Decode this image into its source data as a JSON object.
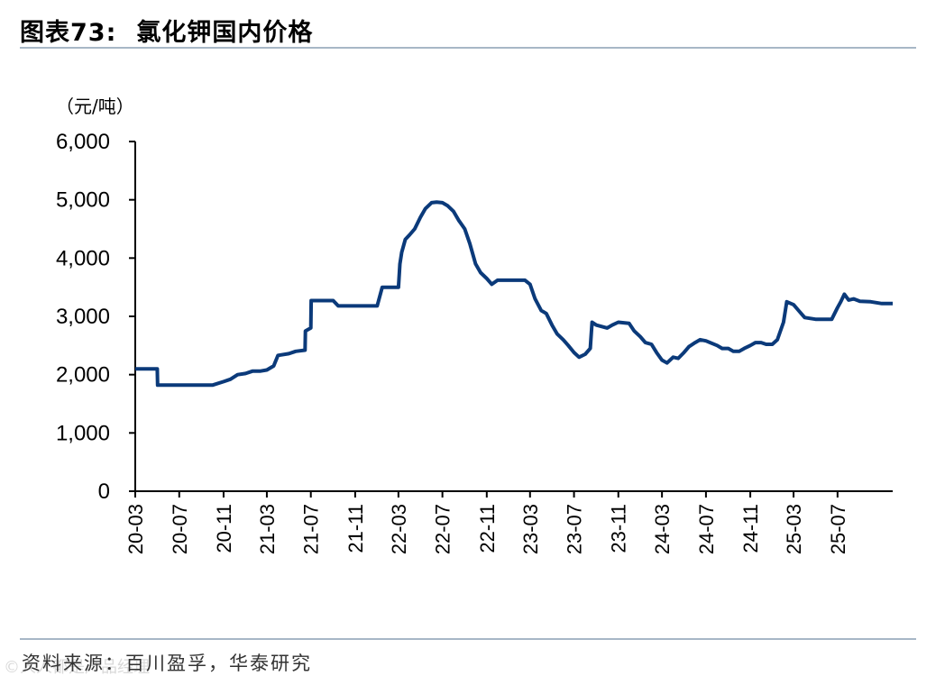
{
  "figure": {
    "label": "图表73:",
    "title": "氯化钾国内价格",
    "source": "资料来源：百川盈孚，华泰研究",
    "watermark": "©人人都是产品经理"
  },
  "chart_data": {
    "type": "line",
    "ylabel": "（元/吨）",
    "xlabel": "",
    "ylim": [
      0,
      6000
    ],
    "yticks": [
      "0",
      "1,000",
      "2,000",
      "3,000",
      "4,000",
      "5,000",
      "6,000"
    ],
    "xticks": [
      "20-03",
      "20-07",
      "20-11",
      "21-03",
      "21-07",
      "21-11",
      "22-03",
      "22-07",
      "22-11",
      "23-03",
      "23-07",
      "23-11",
      "24-03",
      "24-07",
      "24-11",
      "25-03",
      "25-07"
    ],
    "xrange": [
      "2020-03",
      "2025-12"
    ],
    "grid": false,
    "color": "#0b3a7a",
    "series": [
      {
        "name": "",
        "x": [
          "2020-03-01",
          "2020-05-01",
          "2020-05-02",
          "2020-06-01",
          "2020-07-01",
          "2020-08-01",
          "2020-09-01",
          "2020-10-01",
          "2020-11-01",
          "2020-11-20",
          "2020-12-10",
          "2021-01-01",
          "2021-01-20",
          "2021-02-10",
          "2021-03-01",
          "2021-03-20",
          "2021-04-01",
          "2021-05-01",
          "2021-05-20",
          "2021-06-15",
          "2021-06-16",
          "2021-07-01",
          "2021-07-02",
          "2021-08-01",
          "2021-09-01",
          "2021-09-15",
          "2021-10-01",
          "2021-11-01",
          "2021-12-01",
          "2022-01-01",
          "2022-01-15",
          "2022-02-01",
          "2022-03-01",
          "2022-03-05",
          "2022-03-10",
          "2022-03-20",
          "2022-04-01",
          "2022-04-15",
          "2022-05-01",
          "2022-05-15",
          "2022-06-01",
          "2022-06-15",
          "2022-07-01",
          "2022-07-15",
          "2022-08-01",
          "2022-08-15",
          "2022-09-01",
          "2022-09-15",
          "2022-10-01",
          "2022-10-15",
          "2022-11-01",
          "2022-11-15",
          "2022-12-01",
          "2023-01-01",
          "2023-02-01",
          "2023-02-15",
          "2023-03-01",
          "2023-03-15",
          "2023-04-01",
          "2023-04-15",
          "2023-05-01",
          "2023-05-15",
          "2023-06-01",
          "2023-06-15",
          "2023-07-01",
          "2023-07-15",
          "2023-08-01",
          "2023-08-15",
          "2023-08-20",
          "2023-09-01",
          "2023-10-01",
          "2023-10-15",
          "2023-11-01",
          "2023-12-01",
          "2023-12-15",
          "2024-01-01",
          "2024-01-15",
          "2024-02-01",
          "2024-02-15",
          "2024-03-01",
          "2024-03-15",
          "2024-04-01",
          "2024-04-15",
          "2024-05-01",
          "2024-05-15",
          "2024-06-01",
          "2024-06-15",
          "2024-07-01",
          "2024-08-01",
          "2024-08-15",
          "2024-09-01",
          "2024-09-15",
          "2024-10-01",
          "2024-10-15",
          "2024-11-01",
          "2024-11-15",
          "2024-12-01",
          "2024-12-15",
          "2025-01-01",
          "2025-01-15",
          "2025-02-01",
          "2025-02-10",
          "2025-03-01",
          "2025-03-15",
          "2025-04-01",
          "2025-05-01",
          "2025-06-01",
          "2025-06-15",
          "2025-07-01",
          "2025-07-10",
          "2025-07-20",
          "2025-08-01",
          "2025-08-15",
          "2025-09-01",
          "2025-10-01",
          "2025-11-01",
          "2025-12-01"
        ],
        "values": [
          2100,
          2100,
          1820,
          1820,
          1820,
          1820,
          1820,
          1820,
          1880,
          1920,
          2000,
          2020,
          2060,
          2060,
          2080,
          2150,
          2330,
          2360,
          2400,
          2420,
          2750,
          2800,
          3270,
          3270,
          3270,
          3180,
          3180,
          3180,
          3180,
          3180,
          3500,
          3500,
          3500,
          3900,
          4100,
          4320,
          4400,
          4500,
          4700,
          4850,
          4950,
          4960,
          4950,
          4900,
          4800,
          4650,
          4500,
          4250,
          3900,
          3750,
          3650,
          3550,
          3620,
          3620,
          3620,
          3620,
          3550,
          3300,
          3100,
          3050,
          2850,
          2700,
          2600,
          2500,
          2380,
          2300,
          2350,
          2450,
          2900,
          2850,
          2800,
          2850,
          2900,
          2880,
          2750,
          2650,
          2550,
          2520,
          2380,
          2250,
          2200,
          2300,
          2280,
          2380,
          2480,
          2550,
          2600,
          2580,
          2500,
          2450,
          2450,
          2400,
          2400,
          2450,
          2500,
          2550,
          2550,
          2520,
          2520,
          2600,
          2900,
          3250,
          3200,
          3100,
          2980,
          2950,
          2950,
          2950,
          3150,
          3250,
          3380,
          3280,
          3300,
          3260,
          3250,
          3220,
          3220
        ]
      }
    ]
  }
}
